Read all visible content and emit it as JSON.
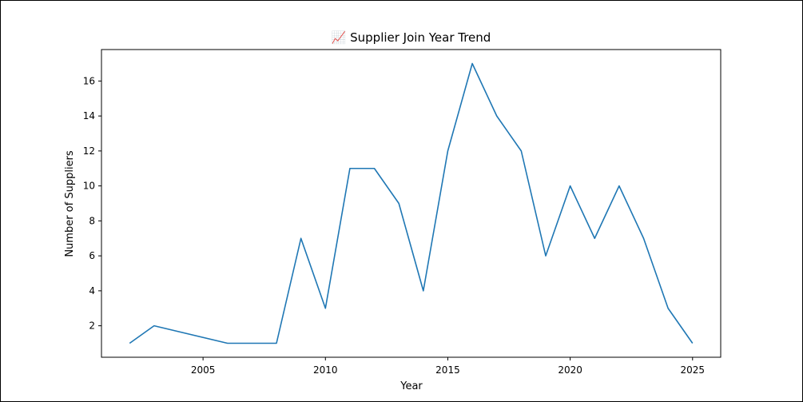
{
  "chart_data": {
    "type": "line",
    "title": "📈 Supplier Join Year Trend",
    "xlabel": "Year",
    "ylabel": "Number of Suppliers",
    "xlim": [
      2000.85,
      2026.15
    ],
    "ylim": [
      0.2,
      17.8
    ],
    "xticks": [
      2005,
      2010,
      2015,
      2020,
      2025
    ],
    "yticks": [
      2,
      4,
      6,
      8,
      10,
      12,
      14,
      16
    ],
    "grid": false,
    "line_color": "#1f77b4",
    "series": [
      {
        "x": [
          2002,
          2003,
          2006,
          2007,
          2008,
          2009,
          2010,
          2011,
          2012,
          2013,
          2014,
          2015,
          2016,
          2017,
          2018,
          2019,
          2020,
          2021,
          2022,
          2023,
          2024,
          2025
        ],
        "values": [
          1,
          2,
          1,
          1,
          1,
          7,
          3,
          11,
          11,
          9,
          4,
          12,
          17,
          14,
          12,
          6,
          10,
          7,
          10,
          7,
          3,
          1
        ]
      }
    ]
  }
}
